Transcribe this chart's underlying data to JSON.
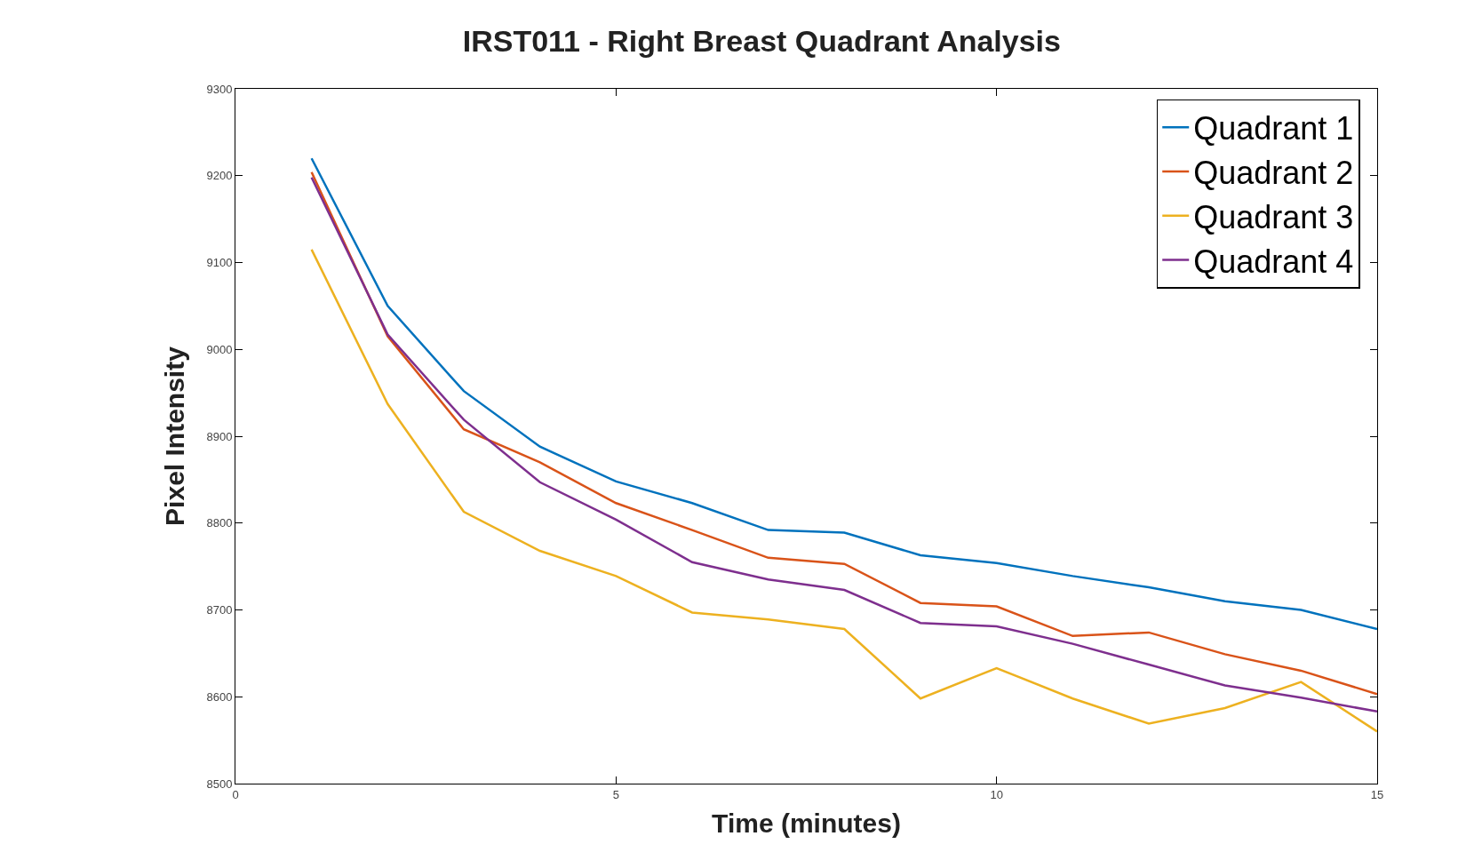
{
  "chart_data": {
    "type": "line",
    "title": "IRST011 - Right Breast Quadrant Analysis",
    "xlabel": "Time (minutes)",
    "ylabel": "Pixel Intensity",
    "x": [
      1,
      2,
      3,
      4,
      5,
      6,
      7,
      8,
      9,
      10,
      11,
      12,
      13,
      14,
      15
    ],
    "xlim": [
      0,
      15
    ],
    "xticks": [
      0,
      5,
      10,
      15
    ],
    "ylim": [
      8500,
      9300
    ],
    "yticks": [
      8500,
      8600,
      8700,
      8800,
      8900,
      9000,
      9100,
      9200,
      9300
    ],
    "legend": "top right",
    "line_style": "solid",
    "marker": "none",
    "series": [
      {
        "name": "Quadrant 1",
        "color": "#0072bd",
        "values": [
          9220,
          9050,
          8952,
          8888,
          8848,
          8823,
          8792,
          8789,
          8763,
          8754,
          8739,
          8726,
          8710,
          8700,
          8678
        ]
      },
      {
        "name": "Quadrant 2",
        "color": "#d95319",
        "values": [
          9204,
          9015,
          8908,
          8870,
          8823,
          8792,
          8760,
          8753,
          8708,
          8704,
          8670,
          8674,
          8649,
          8630,
          8603
        ]
      },
      {
        "name": "Quadrant 3",
        "color": "#edb120",
        "values": [
          9115,
          8937,
          8813,
          8768,
          8739,
          8697,
          8689,
          8678,
          8598,
          8633,
          8598,
          8569,
          8587,
          8617,
          8560
        ]
      },
      {
        "name": "Quadrant 4",
        "color": "#7e2f8e",
        "values": [
          9198,
          9017,
          8919,
          8847,
          8804,
          8755,
          8735,
          8723,
          8685,
          8681,
          8661,
          8637,
          8613,
          8599,
          8583
        ]
      }
    ]
  }
}
